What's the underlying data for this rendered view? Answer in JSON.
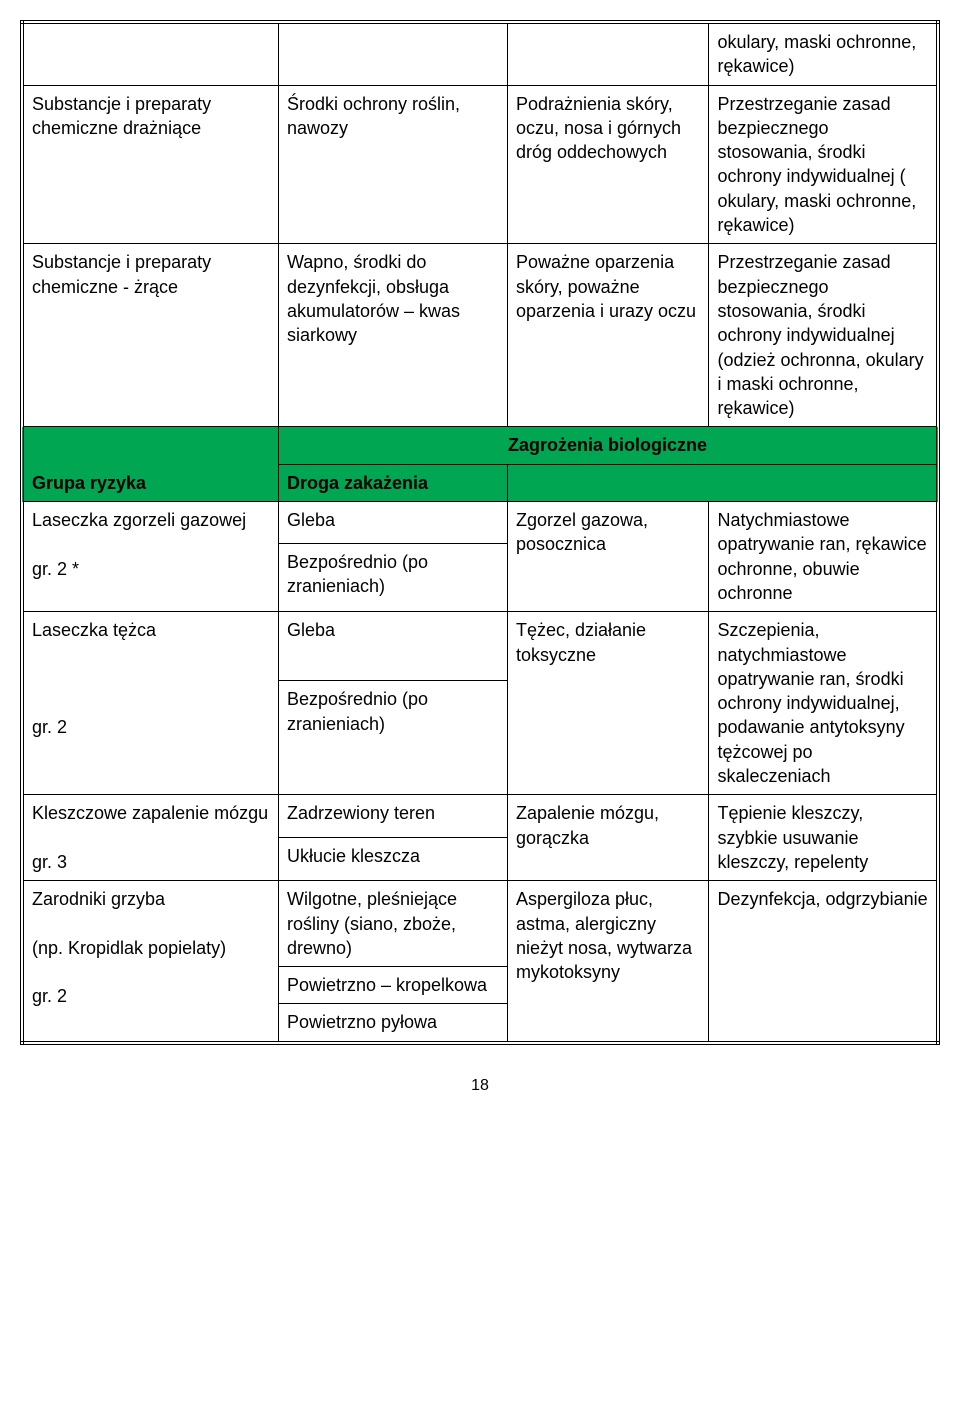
{
  "colors": {
    "band_bg": "#00a651",
    "border": "#000000",
    "text": "#000000",
    "page_bg": "#ffffff"
  },
  "rows_top": [
    {
      "c1": "",
      "c2": "",
      "c3": "",
      "c4": "okulary, maski ochronne, rękawice)"
    },
    {
      "c1": "Substancje i preparaty chemiczne drażniące",
      "c2": "Środki ochrony roślin, nawozy",
      "c3": "Podrażnienia skóry, oczu, nosa i górnych dróg oddechowych",
      "c4": "Przestrzeganie zasad bezpiecznego stosowania, środki ochrony indywidualnej ( okulary, maski ochronne, rękawice)"
    },
    {
      "c1": "Substancje i preparaty chemiczne - żrące",
      "c2": "Wapno, środki do dezynfekcji, obsługa akumulatorów – kwas siarkowy",
      "c3": "Poważne oparzenia skóry, poważne oparzenia i urazy oczu",
      "c4": "Przestrzeganie zasad bezpiecznego stosowania, środki ochrony indywidualnej (odzież ochronna, okulary i maski ochronne, rękawice)"
    }
  ],
  "band": {
    "title": "Zagrożenia biologiczne",
    "left": "Grupa ryzyka",
    "right": "Droga zakażenia"
  },
  "bio": [
    {
      "c1a": "Laseczka zgorzeli gazowej",
      "c1b": "gr. 2 *",
      "c2a": "Gleba",
      "c2b": "Bezpośrednio (po zranieniach)",
      "c3": "Zgorzel gazowa, posocznica",
      "c4": "Natychmiastowe opatrywanie ran, rękawice ochronne, obuwie ochronne"
    },
    {
      "c1a": "Laseczka tężca",
      "c1b": "gr. 2",
      "c2a": "Gleba",
      "c2b": "Bezpośrednio (po zranieniach)",
      "c3": "Tężec, działanie toksyczne",
      "c4": "Szczepienia, natychmiastowe opatrywanie ran, środki ochrony indywidualnej, podawanie antytoksyny tężcowej po skaleczeniach"
    },
    {
      "c1a": "Kleszczowe zapalenie mózgu",
      "c1b": "gr. 3",
      "c2a": "Zadrzewiony teren",
      "c2b": "Ukłucie kleszcza",
      "c3": "Zapalenie mózgu, gorączka",
      "c4": "Tępienie kleszczy, szybkie usuwanie kleszczy, repelenty"
    },
    {
      "c1a": "Zarodniki grzyba",
      "c1mid": "(np. Kropidlak popielaty)",
      "c1b": "gr. 2",
      "c2a": "Wilgotne, pleśniejące rośliny (siano, zboże, drewno)",
      "c2b": "Powietrzno – kropelkowa",
      "c2c": "Powietrzno pyłowa",
      "c3": "Aspergiloza płuc, astma, alergiczny nieżyt nosa, wytwarza mykotoksyny",
      "c4": "Dezynfekcja, odgrzybianie"
    }
  ],
  "page_number": "18"
}
